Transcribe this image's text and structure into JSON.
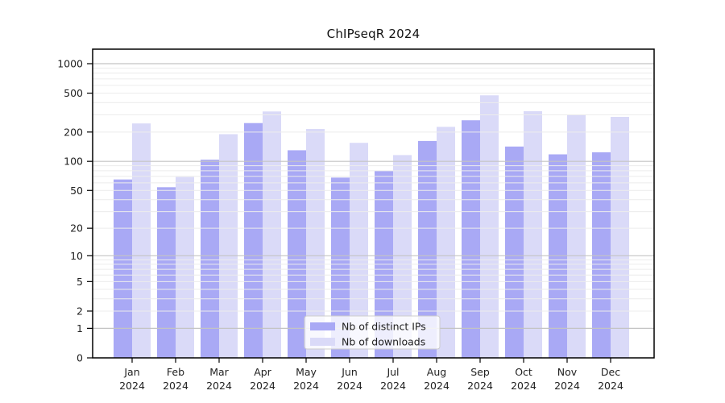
{
  "chart_data": {
    "type": "bar",
    "title": "ChIPseqR 2024",
    "categories": [
      "Jan",
      "Feb",
      "Mar",
      "Apr",
      "May",
      "Jun",
      "Jul",
      "Aug",
      "Sep",
      "Oct",
      "Nov",
      "Dec"
    ],
    "category_year": "2024",
    "series": [
      {
        "name": "Nb of distinct IPs",
        "color": "#a9a9f5",
        "values": [
          65,
          54,
          104,
          247,
          130,
          68,
          80,
          162,
          264,
          142,
          118,
          124
        ]
      },
      {
        "name": "Nb of downloads",
        "color": "#dadaf8",
        "values": [
          245,
          69,
          190,
          325,
          215,
          155,
          116,
          226,
          475,
          327,
          299,
          286
        ]
      }
    ],
    "yticks": [
      0,
      1,
      2,
      5,
      10,
      20,
      50,
      100,
      200,
      500,
      1000
    ],
    "ylim": [
      0,
      1000
    ],
    "scale": "log10(value+1)",
    "grid": true,
    "grid_major_color": "#c4c4c4",
    "grid_minor_color": "#ececec",
    "axis_color": "#000000",
    "legend_position": "lower center",
    "legend_border_color": "#cccccc",
    "xlabel": "",
    "ylabel": ""
  }
}
